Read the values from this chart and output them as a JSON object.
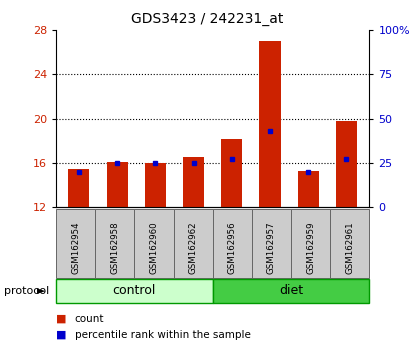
{
  "title": "GDS3423 / 242231_at",
  "samples": [
    "GSM162954",
    "GSM162958",
    "GSM162960",
    "GSM162962",
    "GSM162956",
    "GSM162957",
    "GSM162959",
    "GSM162961"
  ],
  "counts": [
    15.4,
    16.05,
    15.95,
    16.55,
    18.2,
    27.0,
    15.3,
    19.8
  ],
  "percentile_ranks": [
    20,
    25,
    25,
    25,
    27,
    43,
    20,
    27
  ],
  "ylim_left": [
    12,
    28
  ],
  "yticks_left": [
    12,
    16,
    20,
    24,
    28
  ],
  "ylim_right": [
    0,
    100
  ],
  "yticks_right": [
    0,
    25,
    50,
    75,
    100
  ],
  "bar_color": "#cc2200",
  "dot_color": "#0000cc",
  "bg_color": "#ffffff",
  "bar_bottom": 12,
  "legend_count_label": "count",
  "legend_pct_label": "percentile rank within the sample",
  "protocol_label": "protocol",
  "control_color": "#ccffcc",
  "diet_color": "#44cc44",
  "label_bg_color": "#cccccc",
  "group_border_color": "#009900",
  "groups": [
    {
      "label": "control",
      "start": 0,
      "end": 4
    },
    {
      "label": "diet",
      "start": 4,
      "end": 8
    }
  ]
}
